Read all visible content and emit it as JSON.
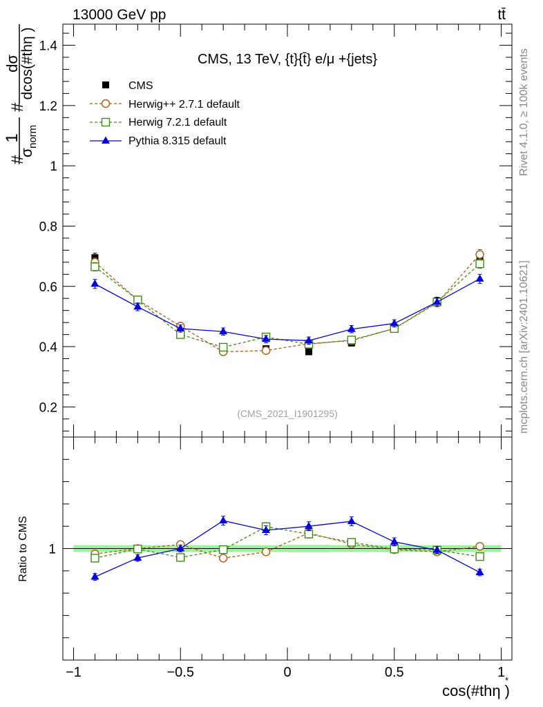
{
  "header": {
    "energy_label": "13000 GeV pp",
    "process_label": "tt̄"
  },
  "side_text": {
    "rivet": "Rivet 4.1.0, ≥ 100k events",
    "mcplots": "mcplots.cern.ch [arXiv:2401.10621]"
  },
  "chart_data": [
    {
      "type": "scatter",
      "title": "CMS, 13 TeV, {t}{t̄} e/μ +{jets}",
      "watermark": "(CMS_2021_I1901295)",
      "ylabel": "#1/σnorm #dσ/dcos(#thη)",
      "ylabel_parts": {
        "hash1": "#",
        "num": "1",
        "sigma": "σ",
        "norm": "norm",
        "hash2": "#",
        "dsigma": "dσ",
        "den": "dcos(#thη )"
      },
      "xlim": [
        -1.05,
        1.05
      ],
      "ylim": [
        0.1,
        1.47
      ],
      "yticks": [
        0.2,
        0.4,
        0.6,
        0.8,
        1,
        1.2,
        1.4
      ],
      "yticklabels": [
        "0.2",
        "0.4",
        "0.6",
        "0.8",
        "1",
        "1.2",
        "1.4"
      ],
      "x": [
        -0.9,
        -0.7,
        -0.5,
        -0.3,
        -0.1,
        0.1,
        0.3,
        0.5,
        0.7,
        0.9
      ],
      "series": [
        {
          "name": "CMS",
          "color": "#000000",
          "values": [
            0.695,
            0.555,
            0.46,
            0.4,
            0.393,
            0.383,
            0.412,
            0.462,
            0.552,
            0.7
          ],
          "errors": [
            0.015,
            0.012,
            0.01,
            0.009,
            0.009,
            0.009,
            0.009,
            0.01,
            0.012,
            0.016
          ]
        },
        {
          "name": "Herwig++ 2.7.1 default",
          "color": "#b05a10",
          "values": [
            0.68,
            0.555,
            0.468,
            0.383,
            0.387,
            0.41,
            0.42,
            0.46,
            0.545,
            0.706
          ],
          "errors": [
            0.014,
            0.012,
            0.011,
            0.009,
            0.009,
            0.01,
            0.01,
            0.011,
            0.012,
            0.016
          ]
        },
        {
          "name": "Herwig 7.2.1 default",
          "color": "#3f8a16",
          "values": [
            0.665,
            0.555,
            0.44,
            0.398,
            0.432,
            0.408,
            0.422,
            0.46,
            0.548,
            0.675
          ],
          "errors": [
            0.014,
            0.012,
            0.011,
            0.009,
            0.01,
            0.01,
            0.01,
            0.011,
            0.012,
            0.015
          ]
        },
        {
          "name": "Pythia 8.315 default",
          "color": "#0000dd",
          "values": [
            0.608,
            0.532,
            0.46,
            0.45,
            0.425,
            0.42,
            0.458,
            0.477,
            0.548,
            0.625
          ],
          "errors": [
            0.015,
            0.013,
            0.012,
            0.012,
            0.012,
            0.012,
            0.012,
            0.012,
            0.013,
            0.015
          ]
        }
      ]
    },
    {
      "type": "scatter",
      "ylabel": "Ratio to CMS",
      "xlabel": "cos(#thη )",
      "xlabel_star": "*",
      "xlim": [
        -1.05,
        1.05
      ],
      "ylim": [
        0.5,
        1.5
      ],
      "yticks": [
        1
      ],
      "yticklabels": [
        "1"
      ],
      "xticks": [
        -1,
        -0.5,
        0,
        0.5,
        1
      ],
      "xticklabels": [
        "−1",
        "−0.5",
        "0",
        "0.5",
        "1"
      ],
      "x": [
        -0.9,
        -0.7,
        -0.5,
        -0.3,
        -0.1,
        0.1,
        0.3,
        0.5,
        0.7,
        0.9
      ],
      "band_halfwidth": [
        0.022,
        0.022,
        0.022,
        0.022,
        0.022,
        0.024,
        0.022,
        0.022,
        0.022,
        0.022
      ],
      "series": [
        {
          "name": "Herwig++ 2.7.1 default",
          "color": "#b05a10",
          "values": [
            0.976,
            1.0,
            1.018,
            0.957,
            0.985,
            1.07,
            1.02,
            0.995,
            0.985,
            1.01
          ],
          "errors": [
            0.015,
            0.015,
            0.015,
            0.015,
            0.015,
            0.018,
            0.015,
            0.015,
            0.015,
            0.015
          ]
        },
        {
          "name": "Herwig 7.2.1 default",
          "color": "#3f8a16",
          "values": [
            0.957,
            0.998,
            0.96,
            0.995,
            1.098,
            1.065,
            1.028,
            0.998,
            0.993,
            0.964
          ],
          "errors": [
            0.015,
            0.015,
            0.015,
            0.015,
            0.018,
            0.018,
            0.015,
            0.015,
            0.015,
            0.015
          ]
        },
        {
          "name": "Pythia 8.315 default",
          "color": "#0000dd",
          "values": [
            0.873,
            0.958,
            1.0,
            1.125,
            1.082,
            1.1,
            1.122,
            1.03,
            0.993,
            0.893
          ],
          "errors": [
            0.015,
            0.015,
            0.015,
            0.02,
            0.02,
            0.02,
            0.02,
            0.018,
            0.015,
            0.015
          ]
        }
      ]
    }
  ]
}
